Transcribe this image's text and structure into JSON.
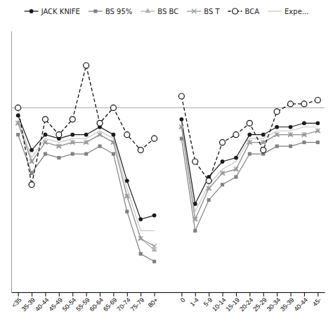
{
  "chart_data": {
    "type": "line",
    "categories": [
      "<35",
      "35-39",
      "40-44",
      "45-49",
      "50-54",
      "55-59",
      "60-64",
      "65-69",
      "70-74",
      "75-79",
      "80+",
      null,
      "0",
      "1-4",
      "5-9",
      "10-14",
      "15-19",
      "20-24",
      "25-29",
      "30-34",
      "35-39",
      "40-44",
      "45-"
    ],
    "series": [
      {
        "name": "JACK KNIFE",
        "color": "#1a1a1a",
        "marker": "circle",
        "line_style": "solid",
        "values": [
          93,
          84,
          88,
          87,
          88,
          88,
          90,
          88,
          76,
          66,
          67,
          null,
          92,
          70,
          77,
          81,
          82,
          88,
          88,
          90,
          90,
          91,
          91
        ]
      },
      {
        "name": "BS 95%",
        "color": "#808080",
        "marker": "square",
        "line_style": "solid",
        "values": [
          88,
          78,
          83,
          82,
          83,
          83,
          85,
          83,
          68,
          57,
          55,
          null,
          87,
          63,
          71,
          75,
          77,
          83,
          83,
          85,
          85,
          86,
          86
        ]
      },
      {
        "name": "BS BC",
        "color": "#b0b0b0",
        "marker": "triangle",
        "line_style": "solid",
        "values": [
          91,
          81,
          86,
          85,
          86,
          86,
          88,
          86,
          72,
          61,
          58,
          null,
          90,
          66,
          74,
          78,
          79,
          86,
          86,
          88,
          88,
          88,
          89
        ]
      },
      {
        "name": "BS T",
        "color": "#989898",
        "marker": "x",
        "line_style": "solid",
        "values": [
          91,
          81,
          86,
          85,
          86,
          86,
          88,
          86,
          72,
          61,
          59,
          null,
          90,
          66,
          74,
          78,
          79,
          86,
          86,
          88,
          88,
          88,
          89
        ]
      },
      {
        "name": "BCA",
        "color": "#111111",
        "marker": "circle-open",
        "line_style": "dashed",
        "values": [
          95,
          75,
          92,
          88,
          92,
          106,
          91,
          95,
          88,
          84,
          87,
          null,
          98,
          81,
          76,
          86,
          88,
          91,
          84,
          94,
          96,
          96,
          97
        ]
      },
      {
        "name": "Expe...",
        "color": "#c8c8c8",
        "marker": "none",
        "line_style": "solid",
        "values": [
          92,
          82,
          87,
          86,
          87,
          87,
          89,
          87,
          74,
          63,
          63,
          null,
          91,
          68,
          75,
          79,
          81,
          87,
          87,
          89,
          89,
          90,
          90
        ]
      }
    ],
    "hlines": [
      {
        "y": 95,
        "color": "#aaaaaa"
      }
    ],
    "ylim": [
      47,
      115
    ],
    "tick_labels": "x",
    "grid": false,
    "legend": "top"
  }
}
